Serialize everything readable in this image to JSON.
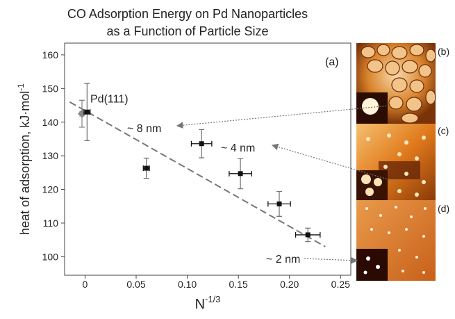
{
  "chart_data": {
    "type": "scatter",
    "title": [
      "CO Adsorption Energy on Pd Nanoparticles",
      "as a Function of Particle Size"
    ],
    "xlabel": "N",
    "xlabel_superscript": "-1/3",
    "ylabel": "heat of adsorption, kJ·mol",
    "ylabel_superscript": "-1",
    "xlim": [
      -0.02,
      0.26
    ],
    "ylim": [
      94.5,
      163.5
    ],
    "xticks": [
      0,
      0.05,
      {
        "value": 0.1,
        "label": "0.10"
      },
      0.15,
      {
        "value": 0.2,
        "label": "0.20"
      },
      0.25
    ],
    "yticks": [
      100,
      110,
      120,
      130,
      140,
      150,
      160
    ],
    "series": [
      {
        "name": "Pd(111)",
        "color": "#888888",
        "marker": "diamond",
        "x": [
          -0.003
        ],
        "values": [
          142.5
        ],
        "x_err": [
          0.002
        ],
        "y_err": [
          4
        ]
      },
      {
        "color": "#111111",
        "marker": "square",
        "x": [
          0.002,
          0.06,
          0.114,
          0.152,
          0.19,
          0.218
        ],
        "values": [
          143,
          126.3,
          133.6,
          124.7,
          115.7,
          106.5
        ],
        "x_err": [
          0.003,
          0.003,
          0.01,
          0.011,
          0.011,
          0.012
        ],
        "y_err": [
          8.5,
          3,
          4.2,
          4.5,
          3.7,
          2
        ]
      }
    ],
    "fit_line": {
      "x": [
        -0.015,
        0.235
      ],
      "values": [
        146,
        103
      ]
    },
    "annotations": [
      "(a)",
      "~ 8 nm",
      "~ 4 nm",
      "~ 2 nm"
    ],
    "panel_labels": [
      "(b)",
      "(c)",
      "(d)"
    ]
  }
}
